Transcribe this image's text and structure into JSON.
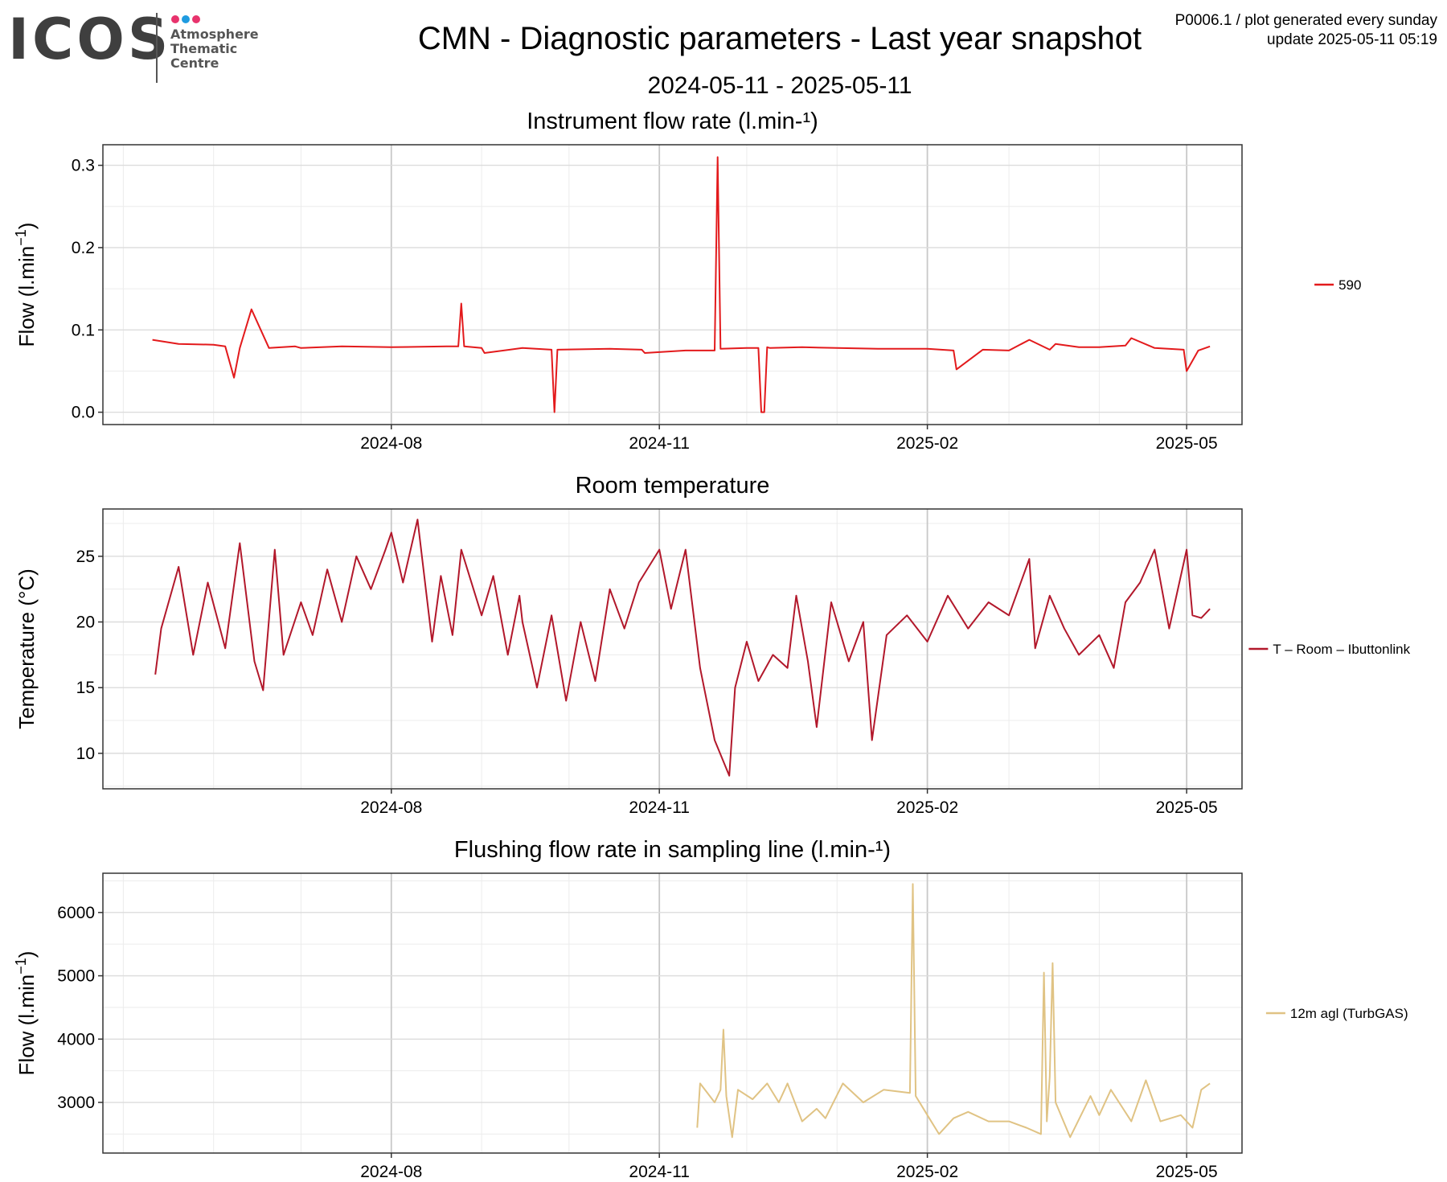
{
  "header": {
    "logo_text": "ICOS",
    "logo_subtitle": [
      "Atmosphere",
      "Thematic",
      "Centre"
    ],
    "logo_dot_colors": [
      "#e8336d",
      "#1f9be0",
      "#e8336d"
    ],
    "title": "CMN - Diagnostic parameters - Last year snapshot",
    "date_range": "2024-05-11 - 2025-05-11",
    "product_line": "P0006.1 / plot generated every sunday",
    "update_line": "update  2025-05-11 05:19"
  },
  "chart_data": [
    {
      "type": "line",
      "title": "Instrument flow rate (l.min-¹)",
      "ylabel": "Flow (l.min",
      "ylabel_sup": "−1",
      "ylabel_close": ")",
      "x_range": [
        "2024-05-11",
        "2025-05-11"
      ],
      "x_ticks": [
        "2024-08-01",
        "2024-11-01",
        "2025-02-01",
        "2025-05-01"
      ],
      "x_tick_labels": [
        "2024-08",
        "2024-11",
        "2025-02",
        "2025-05"
      ],
      "ylim": [
        -0.015,
        0.325
      ],
      "y_ticks": [
        0.0,
        0.1,
        0.2,
        0.3
      ],
      "y_tick_labels": [
        "0.0",
        "0.1",
        "0.2",
        "0.3"
      ],
      "grid": true,
      "legend_position": "right",
      "series": [
        {
          "name": "590",
          "color": "#e31a1c",
          "x": [
            "2024-05-11",
            "2024-05-20",
            "2024-06-01",
            "2024-06-05",
            "2024-06-08",
            "2024-06-10",
            "2024-06-14",
            "2024-06-20",
            "2024-06-29",
            "2024-07-01",
            "2024-07-15",
            "2024-08-01",
            "2024-08-20",
            "2024-08-24",
            "2024-08-25",
            "2024-08-26",
            "2024-09-01",
            "2024-09-02",
            "2024-09-15",
            "2024-09-25",
            "2024-09-26",
            "2024-09-27",
            "2024-10-15",
            "2024-10-26",
            "2024-10-27",
            "2024-11-10",
            "2024-11-20",
            "2024-11-21",
            "2024-11-22",
            "2024-12-01",
            "2024-12-05",
            "2024-12-06",
            "2024-12-07",
            "2024-12-08",
            "2024-12-09",
            "2024-12-20",
            "2025-01-01",
            "2025-01-15",
            "2025-02-01",
            "2025-02-10",
            "2025-02-11",
            "2025-02-20",
            "2025-03-01",
            "2025-03-08",
            "2025-03-15",
            "2025-03-17",
            "2025-03-25",
            "2025-04-01",
            "2025-04-10",
            "2025-04-12",
            "2025-04-20",
            "2025-04-30",
            "2025-05-01",
            "2025-05-05",
            "2025-05-09"
          ],
          "values": [
            0.088,
            0.083,
            0.082,
            0.08,
            0.042,
            0.078,
            0.125,
            0.078,
            0.08,
            0.078,
            0.08,
            0.079,
            0.08,
            0.08,
            0.132,
            0.08,
            0.078,
            0.072,
            0.078,
            0.076,
            0.0,
            0.076,
            0.077,
            0.076,
            0.072,
            0.075,
            0.075,
            0.31,
            0.077,
            0.078,
            0.078,
            0.0,
            0.0,
            0.079,
            0.078,
            0.079,
            0.078,
            0.077,
            0.077,
            0.075,
            0.052,
            0.076,
            0.075,
            0.088,
            0.076,
            0.083,
            0.079,
            0.079,
            0.081,
            0.09,
            0.078,
            0.076,
            0.05,
            0.075,
            0.08
          ]
        }
      ]
    },
    {
      "type": "line",
      "title": "Room temperature",
      "ylabel": "Temperature (°C)",
      "x_range": [
        "2024-05-11",
        "2025-05-11"
      ],
      "x_ticks": [
        "2024-08-01",
        "2024-11-01",
        "2025-02-01",
        "2025-05-01"
      ],
      "x_tick_labels": [
        "2024-08",
        "2024-11",
        "2025-02",
        "2025-05"
      ],
      "ylim": [
        7.3,
        28.6
      ],
      "y_ticks": [
        10,
        15,
        20,
        25
      ],
      "y_tick_labels": [
        "10",
        "15",
        "20",
        "25"
      ],
      "grid": true,
      "legend_position": "right",
      "series": [
        {
          "name": "T – Room – Ibuttonlink",
          "color": "#b2182b",
          "x": [
            "2024-05-12",
            "2024-05-14",
            "2024-05-20",
            "2024-05-25",
            "2024-05-30",
            "2024-06-05",
            "2024-06-10",
            "2024-06-15",
            "2024-06-18",
            "2024-06-22",
            "2024-06-25",
            "2024-07-01",
            "2024-07-05",
            "2024-07-10",
            "2024-07-15",
            "2024-07-20",
            "2024-07-25",
            "2024-07-30",
            "2024-08-01",
            "2024-08-05",
            "2024-08-10",
            "2024-08-15",
            "2024-08-18",
            "2024-08-22",
            "2024-08-25",
            "2024-09-01",
            "2024-09-05",
            "2024-09-10",
            "2024-09-14",
            "2024-09-15",
            "2024-09-20",
            "2024-09-25",
            "2024-09-30",
            "2024-10-05",
            "2024-10-10",
            "2024-10-15",
            "2024-10-20",
            "2024-10-25",
            "2024-11-01",
            "2024-11-05",
            "2024-11-10",
            "2024-11-15",
            "2024-11-20",
            "2024-11-25",
            "2024-11-27",
            "2024-12-01",
            "2024-12-05",
            "2024-12-10",
            "2024-12-15",
            "2024-12-18",
            "2024-12-22",
            "2024-12-25",
            "2024-12-30",
            "2025-01-05",
            "2025-01-10",
            "2025-01-13",
            "2025-01-18",
            "2025-01-25",
            "2025-02-01",
            "2025-02-08",
            "2025-02-15",
            "2025-02-22",
            "2025-03-01",
            "2025-03-08",
            "2025-03-10",
            "2025-03-15",
            "2025-03-20",
            "2025-03-25",
            "2025-04-01",
            "2025-04-06",
            "2025-04-10",
            "2025-04-15",
            "2025-04-20",
            "2025-04-25",
            "2025-05-01",
            "2025-05-03",
            "2025-05-06",
            "2025-05-09"
          ],
          "values": [
            16.0,
            19.5,
            24.2,
            17.5,
            23.0,
            18.0,
            26.0,
            17.0,
            14.8,
            25.5,
            17.5,
            21.5,
            19.0,
            24.0,
            20.0,
            25.0,
            22.5,
            25.5,
            26.8,
            23.0,
            27.8,
            18.5,
            23.5,
            19.0,
            25.5,
            20.5,
            23.5,
            17.5,
            22.0,
            20.0,
            15.0,
            20.5,
            14.0,
            20.0,
            15.5,
            22.5,
            19.5,
            23.0,
            25.5,
            21.0,
            25.5,
            16.5,
            11.0,
            8.3,
            15.0,
            18.5,
            15.5,
            17.5,
            16.5,
            22.0,
            17.0,
            12.0,
            21.5,
            17.0,
            20.0,
            11.0,
            19.0,
            20.5,
            18.5,
            22.0,
            19.5,
            21.5,
            20.5,
            24.8,
            18.0,
            22.0,
            19.5,
            17.5,
            19.0,
            16.5,
            21.5,
            23.0,
            25.5,
            19.5,
            25.5,
            20.5,
            20.3,
            21.0
          ]
        }
      ]
    },
    {
      "type": "line",
      "title": "Flushing flow rate in sampling line (l.min-¹)",
      "ylabel": "Flow (l.min",
      "ylabel_sup": "−1",
      "ylabel_close": ")",
      "x_range": [
        "2024-05-11",
        "2025-05-11"
      ],
      "x_ticks": [
        "2024-08-01",
        "2024-11-01",
        "2025-02-01",
        "2025-05-01"
      ],
      "x_tick_labels": [
        "2024-08",
        "2024-11",
        "2025-02",
        "2025-05"
      ],
      "ylim": [
        2200,
        6620
      ],
      "y_ticks": [
        3000,
        4000,
        5000,
        6000
      ],
      "y_tick_labels": [
        "3000",
        "4000",
        "5000",
        "6000"
      ],
      "grid": true,
      "legend_position": "right",
      "series": [
        {
          "name": "12m agl (TurbGAS)",
          "color": "#e0c384",
          "x": [
            "2024-11-14",
            "2024-11-15",
            "2024-11-20",
            "2024-11-22",
            "2024-11-23",
            "2024-11-24",
            "2024-11-26",
            "2024-11-28",
            "2024-12-03",
            "2024-12-08",
            "2024-12-12",
            "2024-12-15",
            "2024-12-20",
            "2024-12-25",
            "2024-12-28",
            "2025-01-03",
            "2025-01-10",
            "2025-01-17",
            "2025-01-26",
            "2025-01-27",
            "2025-01-28",
            "2025-02-01",
            "2025-02-05",
            "2025-02-10",
            "2025-02-15",
            "2025-02-22",
            "2025-03-01",
            "2025-03-07",
            "2025-03-12",
            "2025-03-13",
            "2025-03-14",
            "2025-03-15",
            "2025-03-16",
            "2025-03-17",
            "2025-03-22",
            "2025-03-29",
            "2025-04-01",
            "2025-04-05",
            "2025-04-12",
            "2025-04-17",
            "2025-04-22",
            "2025-04-29",
            "2025-05-03",
            "2025-05-06",
            "2025-05-09"
          ],
          "values": [
            2600,
            3300,
            3000,
            3200,
            4150,
            3100,
            2450,
            3200,
            3050,
            3300,
            3000,
            3300,
            2700,
            2900,
            2750,
            3300,
            3000,
            3200,
            3150,
            6450,
            3100,
            2800,
            2500,
            2750,
            2850,
            2700,
            2700,
            2600,
            2500,
            5050,
            2700,
            3400,
            5200,
            3000,
            2450,
            3100,
            2800,
            3200,
            2700,
            3350,
            2700,
            2800,
            2600,
            3200,
            3300
          ]
        }
      ]
    }
  ]
}
